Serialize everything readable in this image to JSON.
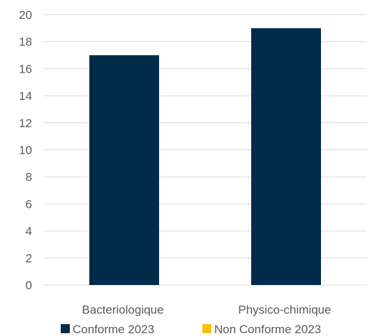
{
  "chart_data": {
    "type": "bar",
    "categories": [
      "Bacteriologique",
      "Physico-chimique"
    ],
    "series": [
      {
        "name": "Conforme 2023",
        "values": [
          17,
          19
        ],
        "color": "#002b49"
      },
      {
        "name": "Non Conforme 2023",
        "values": [
          0,
          0
        ],
        "color": "#f5c400"
      }
    ],
    "yticks": [
      "0",
      "2",
      "4",
      "6",
      "8",
      "10",
      "12",
      "14",
      "16",
      "18",
      "20"
    ],
    "ylim": [
      0,
      20
    ],
    "grid": true,
    "legend_position": "bottom"
  }
}
